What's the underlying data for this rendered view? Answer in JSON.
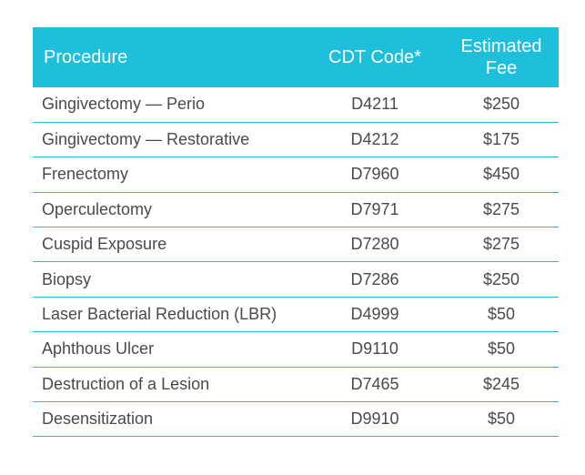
{
  "table": {
    "headers": {
      "procedure": "Procedure",
      "code": "CDT Code*",
      "fee": "Estimated Fee"
    },
    "rows": [
      {
        "procedure": "Gingivectomy — Perio",
        "code": "D4211",
        "fee": "$250"
      },
      {
        "procedure": "Gingivectomy — Restorative",
        "code": "D4212",
        "fee": "$175"
      },
      {
        "procedure": "Frenectomy",
        "code": "D7960",
        "fee": "$450"
      },
      {
        "procedure": "Operculectomy",
        "code": "D7971",
        "fee": "$275"
      },
      {
        "procedure": "Cuspid Exposure",
        "code": "D7280",
        "fee": "$275"
      },
      {
        "procedure": "Biopsy",
        "code": "D7286",
        "fee": "$250"
      },
      {
        "procedure": "Laser Bacterial Reduction (LBR)",
        "code": "D4999",
        "fee": "$50"
      },
      {
        "procedure": "Aphthous Ulcer",
        "code": "D9110",
        "fee": "$50"
      },
      {
        "procedure": "Destruction of a Lesion",
        "code": "D7465",
        "fee": "$245"
      },
      {
        "procedure": "Desensitization",
        "code": "D9910",
        "fee": "$50"
      }
    ]
  },
  "colors": {
    "header_bg": "#1dbfdb",
    "header_text": "#ffffff",
    "row_border": "#1dbfdb",
    "cell_text": "#4a4a4a"
  }
}
